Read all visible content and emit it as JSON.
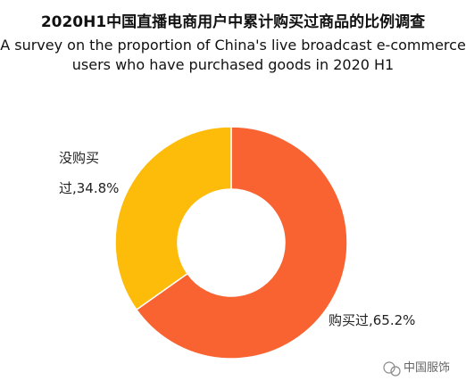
{
  "chart_data": {
    "type": "donut",
    "title": "2020H1中国直播电商用户中累计购买过商品的比例调查",
    "subtitle": [
      "A survey on the proportion of China's live broadcast e-commerce",
      "users who have purchased goods  in 2020 H1"
    ],
    "categories": [
      "购买过",
      "没购买过"
    ],
    "values": [
      65.2,
      34.8
    ],
    "value_labels": [
      "购买过,65.2%",
      "没购买过,34.8%"
    ],
    "colors": [
      "#f96332",
      "#fdbb0a"
    ],
    "watermark": "中国服饰"
  }
}
